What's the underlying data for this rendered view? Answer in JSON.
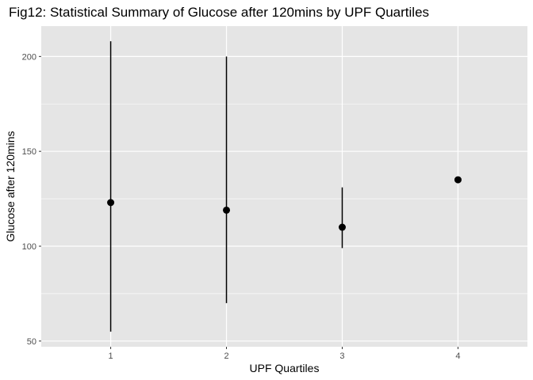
{
  "chart_data": {
    "type": "scatter",
    "title": "Fig12: Statistical Summary of Glucose after 120mins by UPF Quartiles",
    "xlabel": "UPF Quartiles",
    "ylabel": "Glucose after 120mins",
    "categories": [
      "1",
      "2",
      "3",
      "4"
    ],
    "points": [
      {
        "x": "1",
        "y": 123,
        "ymin": 55,
        "ymax": 208
      },
      {
        "x": "2",
        "y": 119,
        "ymin": 70,
        "ymax": 200
      },
      {
        "x": "3",
        "y": 110,
        "ymin": 99,
        "ymax": 131
      },
      {
        "x": "4",
        "y": 135,
        "ymin": null,
        "ymax": null
      }
    ],
    "yticks": [
      50,
      100,
      150,
      200
    ],
    "ylim": [
      47,
      216
    ],
    "grid": true,
    "colors": {
      "panel": "#e5e5e5",
      "grid": "#ffffff",
      "marks": "#000000"
    }
  }
}
